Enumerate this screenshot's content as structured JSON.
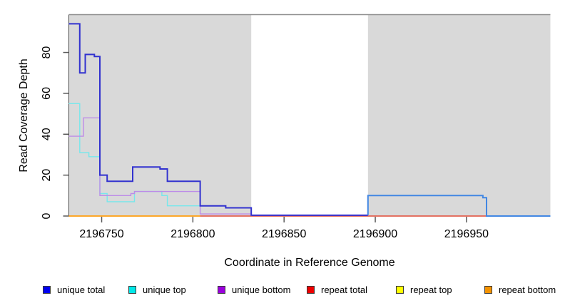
{
  "figure": {
    "plot_bg_color": "#d9d9d9",
    "gap_color": "#ffffff",
    "top_border_color": "#8f8f8f",
    "axis_color": "#4d4d4d",
    "tick_color": "#595959"
  },
  "chart_data": {
    "type": "line",
    "subtype": "step",
    "title": "",
    "xlabel": "Coordinate in Reference Genome",
    "ylabel": "Read Coverage Depth",
    "xlim": [
      2196732,
      2196996
    ],
    "ylim": [
      0,
      98.5
    ],
    "x_ticks": [
      2196750,
      2196800,
      2196850,
      2196900,
      2196950
    ],
    "y_ticks": [
      0,
      20,
      40,
      60,
      80
    ],
    "grid": false,
    "legend_position": "bottom",
    "shaded_regions": [
      {
        "from": 2196732,
        "to": 2196832,
        "color": "#d9d9d9"
      },
      {
        "from": 2196896,
        "to": 2196996,
        "color": "#d9d9d9"
      }
    ],
    "series": [
      {
        "name": "unique total",
        "line_color": "#3232cf",
        "line_color2": "#4287e3",
        "color2_from": 2196896,
        "line_width": 2,
        "z": 6,
        "steps": [
          [
            2196732,
            94
          ],
          [
            2196738,
            70
          ],
          [
            2196741,
            79
          ],
          [
            2196746,
            78
          ],
          [
            2196749,
            20
          ],
          [
            2196753,
            17
          ],
          [
            2196767,
            24
          ],
          [
            2196782,
            23
          ],
          [
            2196786,
            17
          ],
          [
            2196804,
            5
          ],
          [
            2196818,
            4
          ],
          [
            2196832,
            0.4
          ],
          [
            2196896,
            10
          ],
          [
            2196959,
            9
          ],
          [
            2196961,
            0
          ],
          [
            2196996,
            0
          ]
        ]
      },
      {
        "name": "unique top",
        "line_color": "#76e7ec",
        "line_width": 1.4,
        "z": 4,
        "steps": [
          [
            2196732,
            55
          ],
          [
            2196738,
            31
          ],
          [
            2196743,
            29
          ],
          [
            2196749,
            11
          ],
          [
            2196753,
            7
          ],
          [
            2196768,
            12
          ],
          [
            2196783,
            10
          ],
          [
            2196786,
            5
          ],
          [
            2196818,
            4
          ],
          [
            2196832,
            0
          ]
        ]
      },
      {
        "name": "unique bottom",
        "line_color": "#bd8ce8",
        "line_width": 1.4,
        "z": 5,
        "steps": [
          [
            2196732,
            39
          ],
          [
            2196740,
            48
          ],
          [
            2196749,
            10
          ],
          [
            2196766,
            11
          ],
          [
            2196768,
            12
          ],
          [
            2196804,
            1
          ],
          [
            2196832,
            0
          ]
        ]
      },
      {
        "name": "repeat total",
        "line_color": "#e0485a",
        "line_width": 1.6,
        "z": 3,
        "steps": [
          [
            2196804,
            0
          ],
          [
            2196996,
            0
          ]
        ]
      },
      {
        "name": "repeat top",
        "line_color": "#f2f20c",
        "line_width": 1.4,
        "z": 1,
        "steps": [
          [
            2196732,
            0
          ],
          [
            2196996,
            0
          ]
        ]
      },
      {
        "name": "repeat bottom",
        "line_color": "#ff9d1e",
        "line_width": 1.8,
        "z": 2,
        "steps": [
          [
            2196732,
            0
          ],
          [
            2196804,
            0
          ]
        ]
      }
    ]
  },
  "legend": {
    "items": [
      {
        "label": "unique total",
        "swatch_color": "#0000f0"
      },
      {
        "label": "unique top",
        "swatch_color": "#00e8e8"
      },
      {
        "label": "unique bottom",
        "swatch_color": "#9b00dd"
      },
      {
        "label": "repeat total",
        "swatch_color": "#ee0000"
      },
      {
        "label": "repeat top",
        "swatch_color": "#ffff00"
      },
      {
        "label": "repeat bottom",
        "swatch_color": "#f59300"
      }
    ]
  }
}
